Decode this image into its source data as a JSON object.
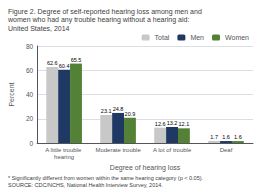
{
  "chart_data": {
    "type": "bar",
    "title": "Figure 2. Degree of self-reported hearing loss among men and women who had any trouble hearing without a hearing aid:",
    "subtitle": "United States, 2014",
    "annotations": [
      "* Significantly different from women within the same hearing category (p < 0.05).",
      "SOURCE: CDC/NCHS, National Health Interview Survey, 2014."
    ],
    "xlabel": "Degree of hearing loss",
    "ylabel": "Percent",
    "categories": [
      "A little trouble hearing",
      "Moderate trouble",
      "A lot of trouble",
      "Deaf"
    ],
    "series": [
      {
        "name": "Total",
        "color": "#c8c8c8",
        "values": [
          62.6,
          23.1,
          12.6,
          1.7
        ]
      },
      {
        "name": "Men",
        "color": "#1f3864",
        "values": [
          60.4,
          24.8,
          13.2,
          1.6
        ]
      },
      {
        "name": "Women",
        "color": "#538135",
        "values": [
          65.5,
          20.9,
          12.1,
          1.6
        ]
      }
    ],
    "ylim": [
      0,
      80
    ],
    "yticks": [
      0,
      20,
      40,
      60,
      80
    ],
    "grid": true,
    "legend": "upper right",
    "data_labels": true
  }
}
